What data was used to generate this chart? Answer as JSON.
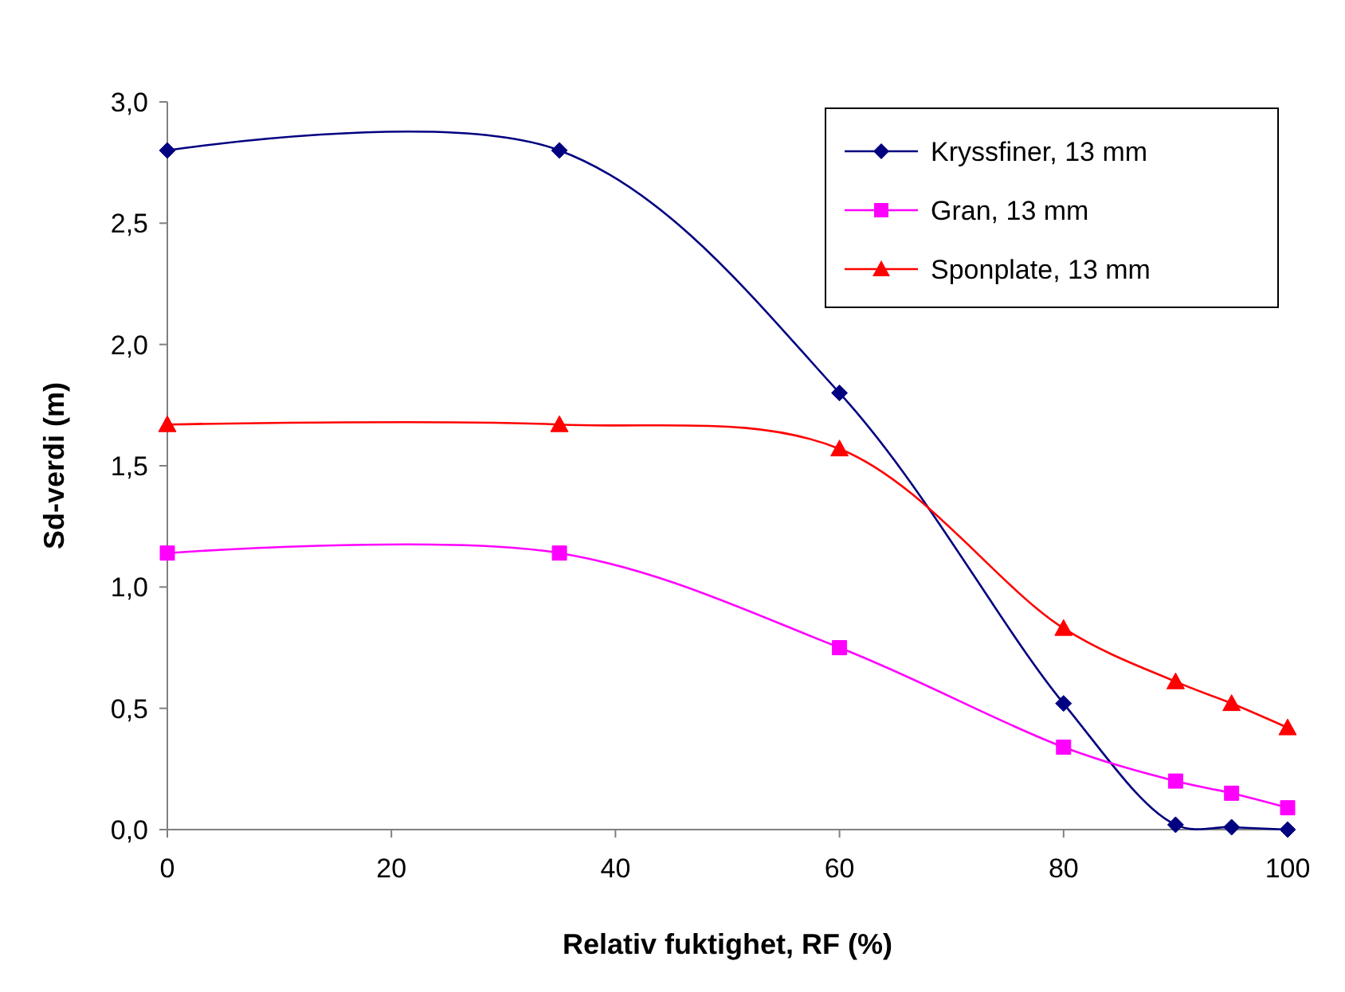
{
  "chart_data": {
    "type": "line",
    "xlabel": "Relativ fuktighet, RF (%)",
    "ylabel": "Sd-verdi (m)",
    "x": [
      0,
      35,
      60,
      80,
      90,
      95,
      100
    ],
    "series": [
      {
        "name": "Kryssfiner, 13 mm",
        "color": "#000080",
        "marker": "diamond",
        "values": [
          2.8,
          2.8,
          1.8,
          0.52,
          0.02,
          0.01,
          0.0
        ]
      },
      {
        "name": "Gran, 13 mm",
        "color": "#ff00ff",
        "marker": "square",
        "values": [
          1.14,
          1.14,
          0.75,
          0.34,
          0.2,
          0.15,
          0.09
        ]
      },
      {
        "name": "Sponplate, 13 mm",
        "color": "#ff0000",
        "marker": "triangle",
        "values": [
          1.67,
          1.67,
          1.57,
          0.83,
          0.61,
          0.52,
          0.42
        ]
      }
    ],
    "xlim": [
      0,
      100
    ],
    "xticks": [
      0,
      20,
      40,
      60,
      80,
      100
    ],
    "ylim": [
      0,
      3
    ],
    "yticks": [
      {
        "value": 0,
        "label": "0,0"
      },
      {
        "value": 0.5,
        "label": "0,5"
      },
      {
        "value": 1,
        "label": "1,0"
      },
      {
        "value": 1.5,
        "label": "1,5"
      },
      {
        "value": 2,
        "label": "2,0"
      },
      {
        "value": 2.5,
        "label": "2,5"
      },
      {
        "value": 3,
        "label": "3,0"
      }
    ],
    "grid": false,
    "legend": "top right",
    "line_style": "solid"
  }
}
